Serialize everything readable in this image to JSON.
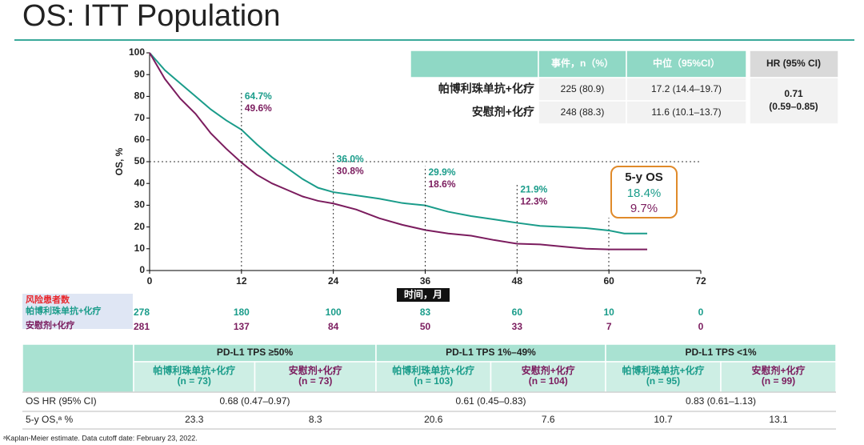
{
  "title": "OS: ITT Population",
  "chart_data": {
    "type": "line",
    "x_label": "时间，月",
    "y_label": "OS, %",
    "xlim": [
      0,
      72
    ],
    "xticks": [
      0,
      12,
      24,
      36,
      48,
      60,
      72
    ],
    "ylim": [
      0,
      100
    ],
    "yticks": [
      0,
      10,
      20,
      30,
      40,
      50,
      60,
      70,
      80,
      90,
      100
    ],
    "x": [
      0,
      2,
      4,
      6,
      8,
      10,
      12,
      14,
      16,
      18,
      20,
      22,
      24,
      27,
      30,
      33,
      36,
      39,
      42,
      45,
      48,
      51,
      54,
      57,
      60,
      62,
      65
    ],
    "series": [
      {
        "name": "帕博利珠单抗+化疗",
        "color": "#1a9c8a",
        "values": [
          100,
          92,
          86,
          80,
          74,
          69,
          64.7,
          58,
          52,
          47,
          42,
          38,
          36,
          34.5,
          33,
          31,
          29.9,
          27,
          25,
          23.5,
          21.9,
          20.5,
          20,
          19.5,
          18.4,
          17,
          17
        ]
      },
      {
        "name": "安慰剂+化疗",
        "color": "#7b1c5e",
        "values": [
          100,
          88,
          79,
          72,
          63,
          56,
          49.6,
          44,
          40,
          37,
          34,
          32,
          30.8,
          28,
          24,
          21,
          18.6,
          17,
          16,
          14,
          12.3,
          12,
          11,
          10,
          9.7,
          9.7,
          9.7
        ]
      }
    ],
    "reference_y": 50,
    "annotations": [
      {
        "x": 12,
        "texts": [
          "64.7%",
          "49.6%"
        ]
      },
      {
        "x": 24,
        "texts": [
          "36.0%",
          "30.8%"
        ]
      },
      {
        "x": 36,
        "texts": [
          "29.9%",
          "18.6%"
        ]
      },
      {
        "x": 48,
        "texts": [
          "21.9%",
          "12.3%"
        ]
      }
    ],
    "five_year_box": {
      "title": "5-y OS",
      "texts": [
        "18.4%",
        "9.7%"
      ]
    }
  },
  "summary_table": {
    "header": [
      "事件，n（%）",
      "中位（95%CI）",
      "HR (95% CI)"
    ],
    "rows": [
      [
        "帕博利珠单抗+化疗",
        "225 (80.9)",
        "17.2 (14.4–19.7)"
      ],
      [
        "安慰剂+化疗",
        "248 (88.3)",
        "11.6 (10.1–13.7)"
      ]
    ],
    "hr": [
      "0.71",
      "(0.59–0.85)"
    ]
  },
  "risk_table": {
    "title": "风险患者数",
    "rows": [
      [
        278,
        180,
        100,
        83,
        60,
        10,
        0
      ],
      [
        281,
        137,
        84,
        50,
        33,
        7,
        0
      ]
    ]
  },
  "subgroup_table": {
    "groups": [
      "PD-L1 TPS ≥50%",
      "PD-L1 TPS 1%–49%",
      "PD-L1 TPS <1%"
    ],
    "arms": [
      [
        "帕博利珠单抗+化疗",
        "(n = 73)"
      ],
      [
        "安慰剂+化疗",
        "(n = 73)"
      ],
      [
        "帕博利珠单抗+化疗",
        "(n = 103)"
      ],
      [
        "安慰剂+化疗",
        "(n = 104)"
      ],
      [
        "帕博利珠单抗+化疗",
        "(n = 95)"
      ],
      [
        "安慰剂+化疗",
        "(n = 99)"
      ]
    ],
    "hr_label": "OS HR (95% CI)",
    "hr": [
      "0.68 (0.47–0.97)",
      "0.61 (0.45–0.83)",
      "0.83 (0.61–1.13)"
    ],
    "os_label": "5-y OS,ᵃ %",
    "os": [
      "23.3",
      "8.3",
      "20.6",
      "7.6",
      "10.7",
      "13.1"
    ]
  },
  "footnote": "ᵃKaplan-Meier estimate.  Data cutoff date: February 23, 2022."
}
